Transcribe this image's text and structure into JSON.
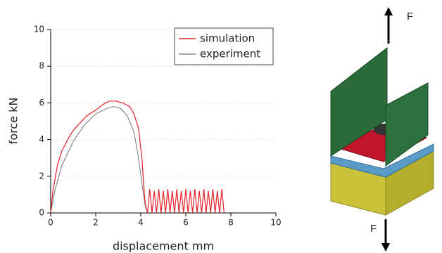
{
  "chart_data": {
    "type": "line",
    "xlabel": "displacement mm",
    "ylabel": "force kN",
    "xlim": [
      0,
      10
    ],
    "xticks": [
      0,
      2,
      4,
      6,
      8,
      10
    ],
    "ylim": [
      0,
      10
    ],
    "yticks": [
      0,
      2,
      4,
      6,
      8,
      10
    ],
    "grid": true,
    "legend": "upper right",
    "series": [
      {
        "name": "simulation",
        "color": "#e8202a",
        "x": [
          0,
          0.1,
          0.3,
          0.5,
          0.8,
          1.0,
          1.3,
          1.6,
          2.0,
          2.3,
          2.6,
          2.9,
          3.2,
          3.5,
          3.7,
          3.9,
          4.05,
          4.15,
          4.2,
          4.3,
          4.4,
          4.5,
          4.6,
          4.7,
          4.8,
          4.9,
          5.0,
          5.1,
          5.2,
          5.3,
          5.4,
          5.5,
          5.6,
          5.7,
          5.8,
          5.9,
          6.0,
          6.1,
          6.2,
          6.3,
          6.4,
          6.5,
          6.6,
          6.7,
          6.8,
          6.9,
          7.0,
          7.1,
          7.2,
          7.3,
          7.4,
          7.5,
          7.6,
          7.7
        ],
        "values": [
          0,
          1.2,
          2.6,
          3.4,
          4.1,
          4.5,
          4.9,
          5.3,
          5.6,
          5.9,
          6.1,
          6.1,
          6.0,
          5.8,
          5.4,
          4.6,
          3.0,
          1.2,
          0.5,
          0,
          1.3,
          0,
          1.2,
          0,
          1.3,
          0,
          1.2,
          0,
          1.3,
          0,
          1.2,
          0,
          1.3,
          0,
          1.2,
          0,
          1.3,
          0,
          1.2,
          0,
          1.3,
          0,
          1.2,
          0,
          1.3,
          0,
          1.2,
          0,
          1.3,
          0,
          1.2,
          0,
          1.3,
          0
        ]
      },
      {
        "name": "experiment",
        "color": "#8a8a8a",
        "x": [
          0,
          0.2,
          0.5,
          1.0,
          1.5,
          2.0,
          2.5,
          2.8,
          3.1,
          3.4,
          3.7,
          3.9,
          4.1,
          4.2,
          4.3
        ],
        "values": [
          0,
          1.3,
          2.6,
          3.9,
          4.8,
          5.4,
          5.7,
          5.8,
          5.7,
          5.3,
          4.4,
          3.0,
          1.2,
          0.4,
          0
        ]
      }
    ]
  },
  "illustration": {
    "top_force": "F",
    "bottom_force": "F"
  }
}
